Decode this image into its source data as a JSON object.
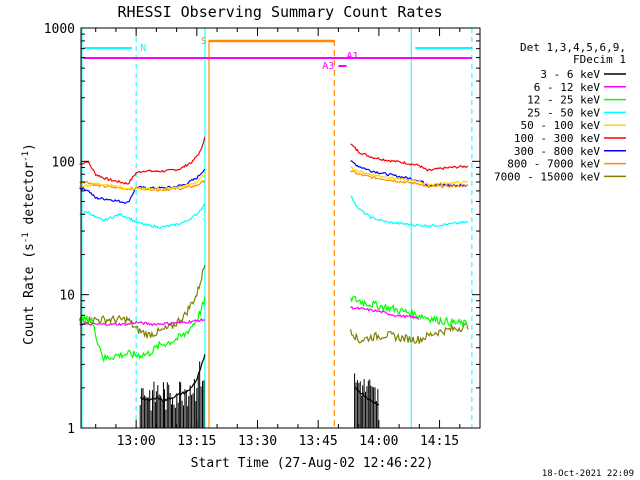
{
  "chart_data": {
    "type": "line",
    "title": "RHESSI Observing Summary Count Rates",
    "xlabel": "Start Time (27-Aug-02 12:46:22)",
    "ylabel": "Count Rate (s",
    "ylabel_sup1": "-1",
    "ylabel_mid": " detector",
    "ylabel_sup2": "-1",
    "ylabel_end": ")",
    "yscale": "log",
    "ylim": [
      1,
      1000
    ],
    "xlim": [
      "12:46:22",
      "14:25:00"
    ],
    "x_ticks": [
      "13:00",
      "13:15",
      "13:30",
      "13:45",
      "14:00",
      "14:15"
    ],
    "y_ticks": [
      "1",
      "10",
      "100",
      "1000"
    ],
    "timestamp": "18-Oct-2021 22:09",
    "legend": {
      "header": [
        "Det 1,3,4,5,6,9,",
        "FDecim 1"
      ],
      "position": "right",
      "entries": [
        {
          "name": "3 - 6 keV",
          "color": "#000000"
        },
        {
          "name": "6 - 12 keV",
          "color": "#ff00ff"
        },
        {
          "name": "12 - 25 keV",
          "color": "#00ff00"
        },
        {
          "name": "25 - 50 keV",
          "color": "#00ffff"
        },
        {
          "name": "50 - 100 keV",
          "color": "#ffd700"
        },
        {
          "name": "100 - 300 keV",
          "color": "#ff0000"
        },
        {
          "name": "300 - 800 keV",
          "color": "#0000ff"
        },
        {
          "name": "800 - 7000 keV",
          "color": "#ff8c00"
        },
        {
          "name": "7000 - 15000 keV",
          "color": "#808000"
        }
      ]
    },
    "annotations": {
      "night": {
        "label": "N",
        "color": "#00ffff"
      },
      "saa": {
        "label": "S",
        "color": "#ff8c00"
      },
      "attenuator": {
        "label": "A1",
        "label2": "A3",
        "color": "#ff00ff"
      }
    },
    "series": [
      {
        "name": "100 - 300 keV",
        "color": "#ff0000",
        "points": [
          [
            "12:46",
            "95"
          ],
          [
            "12:48",
            "100"
          ],
          [
            "12:50",
            "80"
          ],
          [
            "12:52",
            "75"
          ],
          [
            "12:54",
            "72"
          ],
          [
            "12:56",
            "70"
          ],
          [
            "12:58",
            "68"
          ],
          [
            "13:00",
            "82"
          ],
          [
            "13:02",
            "85"
          ],
          [
            "13:05",
            "84"
          ],
          [
            "13:08",
            "85"
          ],
          [
            "13:11",
            "88"
          ],
          [
            "13:14",
            "100"
          ],
          [
            "13:16",
            "120"
          ],
          [
            "13:17",
            "155"
          ],
          [
            "13:53",
            "135"
          ],
          [
            "13:55",
            "118"
          ],
          [
            "13:58",
            "108"
          ],
          [
            "14:02",
            "102"
          ],
          [
            "14:06",
            "98"
          ],
          [
            "14:10",
            "93"
          ],
          [
            "14:12",
            "85"
          ],
          [
            "14:15",
            "88"
          ],
          [
            "14:18",
            "90"
          ],
          [
            "14:22",
            "92"
          ]
        ]
      },
      {
        "name": "300 - 800 keV",
        "color": "#0000ff",
        "points": [
          [
            "12:46",
            "63"
          ],
          [
            "12:48",
            "61"
          ],
          [
            "12:50",
            "53"
          ],
          [
            "12:53",
            "52"
          ],
          [
            "12:56",
            "50"
          ],
          [
            "12:58",
            "49"
          ],
          [
            "13:00",
            "64"
          ],
          [
            "13:03",
            "63"
          ],
          [
            "13:06",
            "63"
          ],
          [
            "13:09",
            "64"
          ],
          [
            "13:12",
            "67"
          ],
          [
            "13:15",
            "75"
          ],
          [
            "13:17",
            "88"
          ],
          [
            "13:53",
            "100"
          ],
          [
            "13:55",
            "92"
          ],
          [
            "13:58",
            "85"
          ],
          [
            "14:02",
            "80"
          ],
          [
            "14:06",
            "76"
          ],
          [
            "14:10",
            "72"
          ],
          [
            "14:12",
            "67"
          ],
          [
            "14:15",
            "67"
          ],
          [
            "14:18",
            "66"
          ],
          [
            "14:22",
            "66"
          ]
        ]
      },
      {
        "name": "800 - 7000 keV",
        "color": "#ff8c00",
        "points": [
          [
            "12:46",
            "70"
          ],
          [
            "12:48",
            "70"
          ],
          [
            "12:50",
            "66"
          ],
          [
            "12:54",
            "64"
          ],
          [
            "12:58",
            "62"
          ],
          [
            "13:00",
            "63"
          ],
          [
            "13:03",
            "62"
          ],
          [
            "13:06",
            "61"
          ],
          [
            "13:09",
            "62"
          ],
          [
            "13:12",
            "63"
          ],
          [
            "13:15",
            "66"
          ],
          [
            "13:17",
            "72"
          ],
          [
            "13:53",
            "85"
          ],
          [
            "13:55",
            "80"
          ],
          [
            "13:58",
            "76"
          ],
          [
            "14:02",
            "73"
          ],
          [
            "14:06",
            "70"
          ],
          [
            "14:10",
            "68"
          ],
          [
            "14:12",
            "64"
          ],
          [
            "14:15",
            "65"
          ],
          [
            "14:18",
            "65"
          ],
          [
            "14:22",
            "66"
          ]
        ]
      },
      {
        "name": "50 - 100 keV",
        "color": "#ffd700",
        "points": [
          [
            "12:46",
            "65"
          ],
          [
            "12:48",
            "66"
          ],
          [
            "12:50",
            "68"
          ],
          [
            "12:53",
            "67"
          ],
          [
            "12:56",
            "64"
          ],
          [
            "12:58",
            "62"
          ],
          [
            "13:00",
            "62"
          ],
          [
            "13:03",
            "62"
          ],
          [
            "13:06",
            "62"
          ],
          [
            "13:09",
            "63"
          ],
          [
            "13:12",
            "65"
          ],
          [
            "13:15",
            "70"
          ],
          [
            "13:17",
            "80"
          ],
          [
            "13:53",
            "90"
          ],
          [
            "13:55",
            "84"
          ],
          [
            "13:58",
            "80"
          ],
          [
            "14:02",
            "76"
          ],
          [
            "14:06",
            "73"
          ],
          [
            "14:10",
            "71"
          ],
          [
            "14:12",
            "67"
          ],
          [
            "14:15",
            "68"
          ],
          [
            "14:18",
            "69"
          ],
          [
            "14:22",
            "70"
          ]
        ]
      },
      {
        "name": "25 - 50 keV",
        "color": "#00ffff",
        "points": [
          [
            "12:46",
            "40"
          ],
          [
            "12:48",
            "42"
          ],
          [
            "12:50",
            "38"
          ],
          [
            "12:52",
            "36"
          ],
          [
            "12:54",
            "38"
          ],
          [
            "12:56",
            "40"
          ],
          [
            "12:58",
            "38"
          ],
          [
            "13:00",
            "35"
          ],
          [
            "13:03",
            "33"
          ],
          [
            "13:06",
            "32"
          ],
          [
            "13:09",
            "33"
          ],
          [
            "13:12",
            "35"
          ],
          [
            "13:15",
            "40"
          ],
          [
            "13:17",
            "48"
          ],
          [
            "13:53",
            "55"
          ],
          [
            "13:55",
            "44"
          ],
          [
            "13:58",
            "38"
          ],
          [
            "14:02",
            "35"
          ],
          [
            "14:06",
            "34"
          ],
          [
            "14:10",
            "33"
          ],
          [
            "14:14",
            "33"
          ],
          [
            "14:18",
            "34"
          ],
          [
            "14:22",
            "35"
          ]
        ]
      },
      {
        "name": "7000 - 15000 keV",
        "color": "#808000",
        "points": [
          [
            "12:46",
            "6.5"
          ],
          [
            "12:50",
            "6.5"
          ],
          [
            "12:54",
            "6.5"
          ],
          [
            "12:58",
            "6.5"
          ],
          [
            "13:00",
            "5.5"
          ],
          [
            "13:03",
            "5.0"
          ],
          [
            "13:06",
            "5.3"
          ],
          [
            "13:09",
            "5.8"
          ],
          [
            "13:12",
            "7.0"
          ],
          [
            "13:15",
            "10"
          ],
          [
            "13:17",
            "17"
          ],
          [
            "13:53",
            "5.5"
          ],
          [
            "13:55",
            "4.5"
          ],
          [
            "13:58",
            "4.8"
          ],
          [
            "14:02",
            "5.0"
          ],
          [
            "14:06",
            "4.7"
          ],
          [
            "14:10",
            "4.6"
          ],
          [
            "14:14",
            "5.2"
          ],
          [
            "14:18",
            "5.5"
          ],
          [
            "14:22",
            "5.8"
          ]
        ]
      },
      {
        "name": "12 - 25 keV",
        "color": "#00ff00",
        "points": [
          [
            "12:46",
            "6.5"
          ],
          [
            "12:49",
            "6.5"
          ],
          [
            "12:50",
            "5.0"
          ],
          [
            "12:52",
            "3.3"
          ],
          [
            "12:55",
            "3.5"
          ],
          [
            "12:58",
            "3.6"
          ],
          [
            "13:00",
            "3.5"
          ],
          [
            "13:03",
            "3.6"
          ],
          [
            "13:06",
            "4.2"
          ],
          [
            "13:09",
            "4.5"
          ],
          [
            "13:12",
            "5.0"
          ],
          [
            "13:15",
            "6.5"
          ],
          [
            "13:17",
            "9"
          ],
          [
            "13:53",
            "9.5"
          ],
          [
            "13:55",
            "9.0"
          ],
          [
            "13:58",
            "8.5"
          ],
          [
            "14:02",
            "8.0"
          ],
          [
            "14:06",
            "7.5"
          ],
          [
            "14:10",
            "7.0"
          ],
          [
            "14:14",
            "6.5"
          ],
          [
            "14:18",
            "6.2"
          ],
          [
            "14:22",
            "6.0"
          ]
        ]
      },
      {
        "name": "6 - 12 keV",
        "color": "#ff00ff",
        "points": [
          [
            "12:46",
            "6.0"
          ],
          [
            "12:50",
            "6.0"
          ],
          [
            "12:54",
            "6.0"
          ],
          [
            "12:58",
            "6.0"
          ],
          [
            "13:00",
            "6.2"
          ],
          [
            "13:04",
            "6.0"
          ],
          [
            "13:08",
            "6.1"
          ],
          [
            "13:12",
            "6.2"
          ],
          [
            "13:17",
            "6.5"
          ],
          [
            "13:53",
            "8.0"
          ],
          [
            "13:56",
            "7.8"
          ],
          [
            "14:00",
            "7.5"
          ],
          [
            "14:04",
            "7.0"
          ],
          [
            "14:08",
            "6.8"
          ],
          [
            "14:10",
            "6.6"
          ]
        ]
      },
      {
        "name": "3 - 6 keV",
        "color": "#000000",
        "points": [
          [
            "13:01",
            "1.7"
          ],
          [
            "13:03",
            "1.6"
          ],
          [
            "13:05",
            "1.7"
          ],
          [
            "13:07",
            "1.6"
          ],
          [
            "13:09",
            "1.7"
          ],
          [
            "13:11",
            "1.8"
          ],
          [
            "13:13",
            "1.9"
          ],
          [
            "13:15",
            "2.3"
          ],
          [
            "13:17",
            "3.5"
          ],
          [
            "13:54",
            "2.0"
          ],
          [
            "13:56",
            "1.8"
          ],
          [
            "13:58",
            "1.6"
          ],
          [
            "14:00",
            "1.5"
          ]
        ]
      }
    ]
  }
}
